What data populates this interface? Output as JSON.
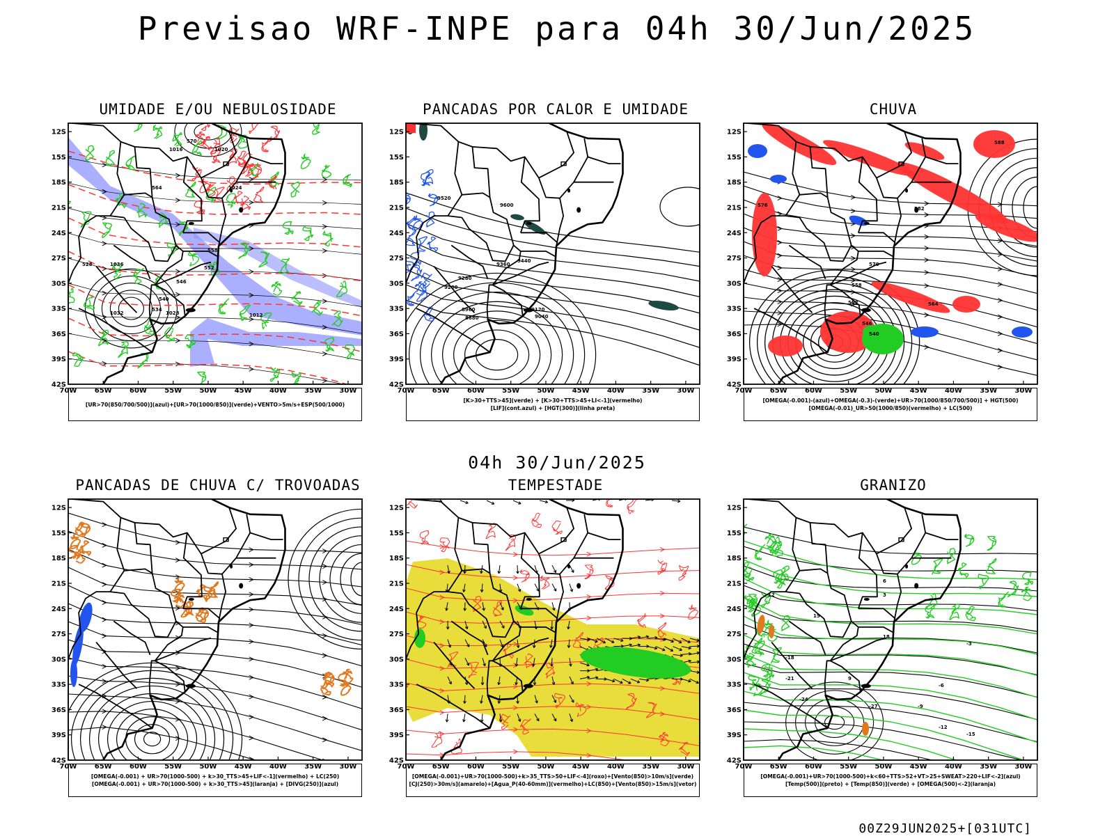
{
  "header": {
    "title": "Previsao WRF-INPE  para 04h 30/Jun/2025"
  },
  "middle": {
    "title": "04h 30/Jun/2025"
  },
  "footer": {
    "run": "00Z29JUN2025+[031UTC]"
  },
  "axes": {
    "lat_labels": [
      "12S",
      "15S",
      "18S",
      "21S",
      "24S",
      "27S",
      "30S",
      "33S",
      "36S",
      "39S",
      "42S"
    ],
    "lon_labels": [
      "70W",
      "65W",
      "60W",
      "55W",
      "50W",
      "45W",
      "40W",
      "35W",
      "30W"
    ]
  },
  "colors": {
    "humid_blue": "#8f94ff",
    "green": "#22cc22",
    "red": "#ff3333",
    "dark_teal": "#1f4a44",
    "blue": "#2255ee",
    "orange": "#e07a20",
    "yellow": "#e8dd3a"
  },
  "panels": [
    {
      "title": "UMIDADE E/OU NEBULOSIDADE",
      "legend": [
        "[UR>70(850/700/500)](azul)+[UR>70(1000/850)](verde)+VENTO>5m/s+ESP(500/1000)"
      ],
      "contour_labels": [
        "1016",
        "1020",
        "1024",
        "1028",
        "1032",
        "1036",
        "1012",
        "570",
        "564",
        "558",
        "552",
        "546",
        "540",
        "534",
        "528"
      ]
    },
    {
      "title": "PANCADAS POR CALOR E UMIDADE",
      "legend": [
        "[K>30+TTS>45](verde) + [K>30+TTS>45+LI<-1](vermelho)",
        "[LIF](cont.azul) + [HGT(300)](linha preta)"
      ],
      "contour_labels": [
        "9600",
        "9520",
        "9440",
        "9360",
        "9280",
        "9200",
        "9120",
        "9040",
        "8960",
        "8880"
      ]
    },
    {
      "title": "CHUVA",
      "legend": [
        "[OMEGA(-0.001)-(azul)+OMEGA(-0.3)-(verde)+UR>70(1000/850/700/500)] + HGT(500)",
        "[OMEGA(-0.01)_UR>50(1000/850)(vermelho) + LC(500)"
      ],
      "contour_labels": [
        "588",
        "582",
        "576",
        "570",
        "564",
        "558",
        "552",
        "546",
        "540"
      ]
    },
    {
      "title": "PANCADAS DE CHUVA C/ TROVOADAS",
      "legend": [
        "[OMEGA(-0.001) + UR>70(1000-500) + k>30_TTS>45+LIF<-1](vermelho) + LC(250)",
        "[OMEGA(-0.001) + UR>70(1000-500) + k>30_TTS>45](laranja) + [DIVG(250)](azul)"
      ],
      "contour_labels": []
    },
    {
      "title": "TEMPESTADE",
      "legend": [
        "[OMEGA(-0.001)+UR>70(1000-500)+k>35_TTS>50+LIF<-4](roxo)+[Vento(850)>10m/s](verde)",
        "[CJ(250)>30m/s](amarelo)+[Agua_P(40-60mm)](vermelho)+LC(850)+[Vento(850)>15m/s](vetor)"
      ],
      "contour_labels": []
    },
    {
      "title": "GRANIZO",
      "legend": [
        "[OMEGA(-0.001)+UR>70(1000-500)+k<60+TTS>52+VT>25+SWEAT>220+LIF<-2](azul)",
        "[Temp(500)](preto) + [Temp(850)](verde) + [OMEGA(500)<-2](laranja)"
      ],
      "contour_labels": [
        "-3",
        "-6",
        "-9",
        "-12",
        "-15",
        "-18",
        "-21",
        "-24",
        "-27",
        "12",
        "15",
        "18",
        "3",
        "6",
        "9"
      ]
    }
  ]
}
